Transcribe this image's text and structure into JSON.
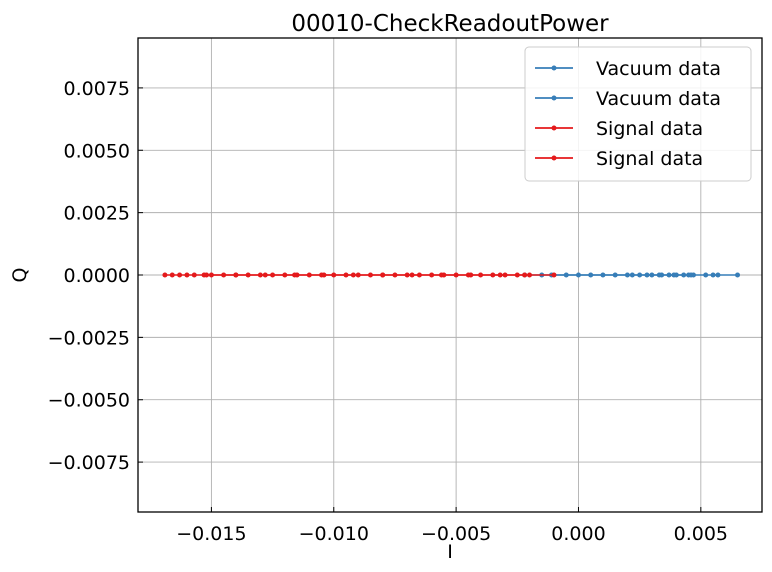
{
  "chart_data": {
    "type": "scatter",
    "title": "00010-CheckReadoutPower",
    "xlabel": "I",
    "ylabel": "Q",
    "xlim": [
      -0.018,
      0.0075
    ],
    "ylim": [
      -0.0095,
      0.0095
    ],
    "x_ticks": [
      -0.015,
      -0.01,
      -0.005,
      0.0,
      0.005
    ],
    "x_tick_labels": [
      "−0.015",
      "−0.010",
      "−0.005",
      "0.000",
      "0.005"
    ],
    "y_ticks": [
      0.0075,
      0.005,
      0.0025,
      0.0,
      -0.0025,
      -0.005,
      -0.0075
    ],
    "y_tick_labels": [
      "0.0075",
      "0.0050",
      "0.0025",
      "0.0000",
      "−0.0025",
      "−0.0050",
      "−0.0075"
    ],
    "grid": true,
    "legend_position": "top-right",
    "series": [
      {
        "name": "Vacuum data",
        "color": "#377eb8",
        "marker": "dot",
        "x": [
          -0.0011,
          0.0,
          0.001,
          0.002,
          0.0025,
          0.003,
          0.0034,
          0.0037,
          0.004,
          0.0043,
          0.0045,
          0.0047,
          0.0052,
          0.0055,
          0.0057,
          0.0065
        ],
        "y": [
          0,
          0,
          0,
          0,
          0,
          0,
          0,
          0,
          0,
          0,
          0,
          0,
          0,
          0,
          0,
          0
        ]
      },
      {
        "name": "Vacuum data",
        "color": "#377eb8",
        "marker": "dot",
        "x": [
          -0.0022,
          -0.0015,
          -0.0005,
          0.0005,
          0.0015,
          0.0022,
          0.0028,
          0.0033,
          0.0039,
          0.0046
        ],
        "y": [
          0,
          0,
          0,
          0,
          0,
          0,
          0,
          0,
          0,
          0
        ]
      },
      {
        "name": "Signal data",
        "color": "#e41a1c",
        "marker": "dot",
        "x": [
          -0.0169,
          -0.0166,
          -0.0163,
          -0.016,
          -0.0157,
          -0.0153,
          -0.015,
          -0.0145,
          -0.014,
          -0.0135,
          -0.013,
          -0.0125,
          -0.012,
          -0.0115,
          -0.011,
          -0.0105,
          -0.01,
          -0.0095,
          -0.009,
          -0.0085,
          -0.008,
          -0.0075,
          -0.007,
          -0.0065,
          -0.006,
          -0.0055,
          -0.005,
          -0.0045,
          -0.004,
          -0.0035,
          -0.003,
          -0.0025,
          -0.0022
        ],
        "y": [
          0,
          0,
          0,
          0,
          0,
          0,
          0,
          0,
          0,
          0,
          0,
          0,
          0,
          0,
          0,
          0,
          0,
          0,
          0,
          0,
          0,
          0,
          0,
          0,
          0,
          0,
          0,
          0,
          0,
          0,
          0,
          0,
          0
        ]
      },
      {
        "name": "Signal data",
        "color": "#e41a1c",
        "marker": "dot",
        "x": [
          -0.0152,
          -0.014,
          -0.0128,
          -0.0116,
          -0.0104,
          -0.0092,
          -0.008,
          -0.0068,
          -0.0056,
          -0.0044,
          -0.0032,
          -0.002,
          -0.001
        ],
        "y": [
          0,
          0,
          0,
          0,
          0,
          0,
          0,
          0,
          0,
          0,
          0,
          0,
          0
        ]
      }
    ]
  }
}
